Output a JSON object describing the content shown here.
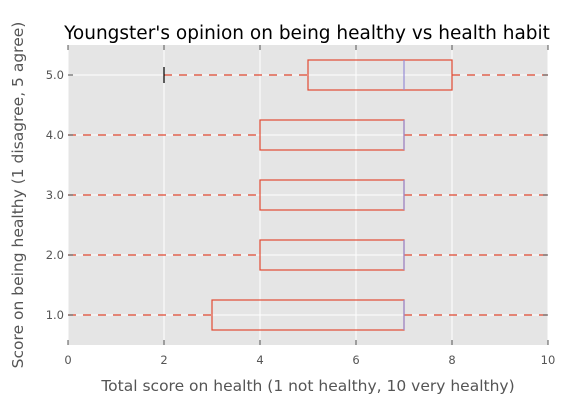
{
  "chart_data": {
    "type": "boxplot",
    "orientation": "horizontal",
    "title": "Youngster's opinion on being healthy vs health habit",
    "xlabel": "Total score on health (1 not healthy, 10 very healthy)",
    "ylabel": "Score on being healthy (1 disagree, 5 agree)",
    "xlim": [
      0,
      10
    ],
    "x_ticks": [
      "0",
      "2",
      "4",
      "6",
      "8",
      "10"
    ],
    "grid": true,
    "categories": [
      "1.0",
      "2.0",
      "3.0",
      "4.0",
      "5.0"
    ],
    "boxes": [
      {
        "category": "1.0",
        "q1": 3,
        "median": 7,
        "q3": 7,
        "whisker_low": 0,
        "whisker_high": 10,
        "fliers": []
      },
      {
        "category": "2.0",
        "q1": 4,
        "median": 7,
        "q3": 7,
        "whisker_low": 0,
        "whisker_high": 10,
        "fliers": []
      },
      {
        "category": "3.0",
        "q1": 4,
        "median": 7,
        "q3": 7,
        "whisker_low": 0,
        "whisker_high": 10,
        "fliers": []
      },
      {
        "category": "4.0",
        "q1": 4,
        "median": 7,
        "q3": 7,
        "whisker_low": 0,
        "whisker_high": 10,
        "fliers": []
      },
      {
        "category": "5.0",
        "q1": 5,
        "median": 7,
        "q3": 8,
        "whisker_low": 2,
        "whisker_high": 10,
        "fliers": []
      }
    ],
    "colors": {
      "background": "#e5e5e5",
      "grid": "#ffffff",
      "box": "#e24a33",
      "median": "#988ed5",
      "cap": "#000000",
      "text": "#555555"
    }
  }
}
